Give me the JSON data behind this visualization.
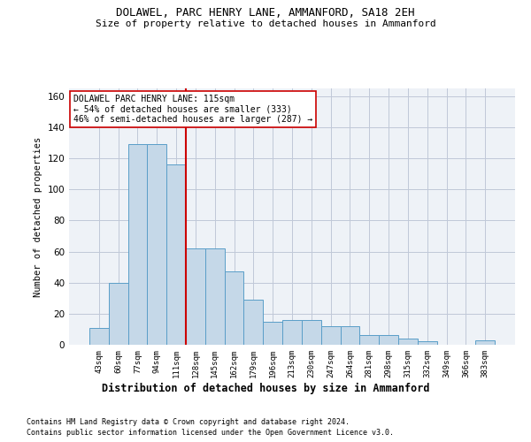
{
  "title1": "DOLAWEL, PARC HENRY LANE, AMMANFORD, SA18 2EH",
  "title2": "Size of property relative to detached houses in Ammanford",
  "xlabel": "Distribution of detached houses by size in Ammanford",
  "ylabel": "Number of detached properties",
  "categories": [
    "43sqm",
    "60sqm",
    "77sqm",
    "94sqm",
    "111sqm",
    "128sqm",
    "145sqm",
    "162sqm",
    "179sqm",
    "196sqm",
    "213sqm",
    "230sqm",
    "247sqm",
    "264sqm",
    "281sqm",
    "298sqm",
    "315sqm",
    "332sqm",
    "349sqm",
    "366sqm",
    "383sqm"
  ],
  "values": [
    11,
    40,
    129,
    129,
    116,
    62,
    62,
    47,
    29,
    15,
    16,
    16,
    12,
    12,
    6,
    6,
    4,
    2,
    0,
    0,
    3
  ],
  "bar_color": "#c5d8e8",
  "bar_edge_color": "#5a9ec8",
  "vline_x": 4.5,
  "vline_color": "#cc0000",
  "annotation_text": "DOLAWEL PARC HENRY LANE: 115sqm\n← 54% of detached houses are smaller (333)\n46% of semi-detached houses are larger (287) →",
  "annotation_box_color": "#ffffff",
  "annotation_box_edge_color": "#cc0000",
  "ylim": [
    0,
    165
  ],
  "yticks": [
    0,
    20,
    40,
    60,
    80,
    100,
    120,
    140,
    160
  ],
  "footnote1": "Contains HM Land Registry data © Crown copyright and database right 2024.",
  "footnote2": "Contains public sector information licensed under the Open Government Licence v3.0.",
  "bg_color": "#eef2f7",
  "grid_color": "#c0c8d8"
}
